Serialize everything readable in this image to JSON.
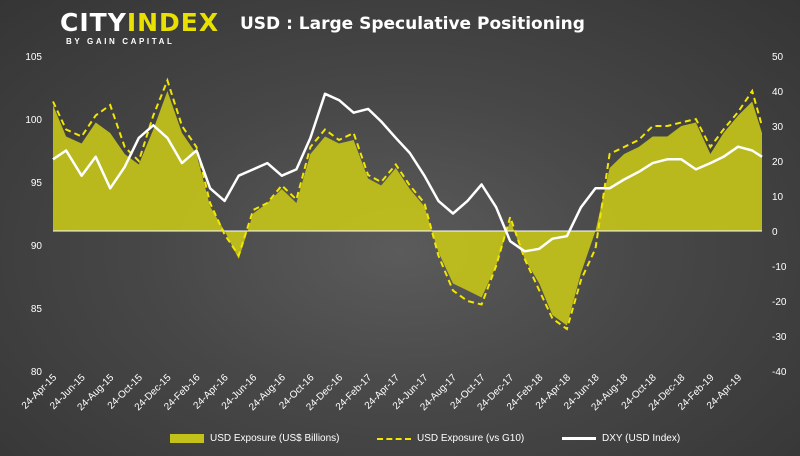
{
  "logo": {
    "main_city": "CITY",
    "main_index": "INDEX",
    "sub": "BY GAIN CAPITAL"
  },
  "colors": {
    "exposure_fill": "#c3c21a",
    "exposure_g10": "#f3e600",
    "dxy": "#ffffff",
    "baseline": "#ffffff"
  },
  "chart_data": {
    "type": "area",
    "title": "USD : Large Speculative Positioning",
    "x_tick_labels": [
      "24-Apr-15",
      "24-Jun-15",
      "24-Aug-15",
      "24-Oct-15",
      "24-Dec-15",
      "24-Feb-16",
      "24-Apr-16",
      "24-Jun-16",
      "24-Aug-16",
      "24-Oct-16",
      "24-Dec-16",
      "24-Feb-17",
      "24-Apr-17",
      "24-Jun-17",
      "24-Aug-17",
      "24-Oct-17",
      "24-Dec-17",
      "24-Feb-18",
      "24-Apr-18",
      "24-Jun-18",
      "24-Aug-18",
      "24-Oct-18",
      "24-Dec-18",
      "24-Feb-19",
      "24-Apr-19"
    ],
    "x_range": [
      "2015-04-24",
      "2019-06-14"
    ],
    "left_axis": {
      "label": "",
      "ylim": [
        80,
        105
      ],
      "ticks": [
        80,
        85,
        90,
        95,
        100,
        105
      ]
    },
    "right_axis": {
      "label": "",
      "ylim": [
        -40,
        50
      ],
      "ticks": [
        -40,
        -30,
        -20,
        -10,
        0,
        10,
        20,
        30,
        40,
        50
      ]
    },
    "legend_position": "bottom",
    "series": [
      {
        "name": "USD Exposure (US$ Billions)",
        "axis": "right",
        "style": "area",
        "x": [
          "2015-04-24",
          "2015-05-22",
          "2015-06-24",
          "2015-07-24",
          "2015-08-24",
          "2015-09-24",
          "2015-10-24",
          "2015-11-24",
          "2015-12-24",
          "2016-01-24",
          "2016-02-24",
          "2016-03-24",
          "2016-04-24",
          "2016-05-24",
          "2016-06-24",
          "2016-07-24",
          "2016-08-24",
          "2016-09-24",
          "2016-10-24",
          "2016-11-24",
          "2016-12-24",
          "2017-01-24",
          "2017-02-24",
          "2017-03-24",
          "2017-04-24",
          "2017-05-24",
          "2017-06-24",
          "2017-07-24",
          "2017-08-24",
          "2017-09-24",
          "2017-10-24",
          "2017-11-24",
          "2017-12-24",
          "2018-01-24",
          "2018-02-24",
          "2018-03-24",
          "2018-04-24",
          "2018-05-24",
          "2018-06-24",
          "2018-07-24",
          "2018-08-24",
          "2018-09-24",
          "2018-10-24",
          "2018-11-24",
          "2018-12-24",
          "2019-01-24",
          "2019-02-24",
          "2019-03-24",
          "2019-04-24",
          "2019-05-24",
          "2019-06-14"
        ],
        "values": [
          36,
          27,
          25,
          31,
          28,
          22,
          19,
          29,
          40,
          28,
          22,
          7,
          0,
          -8,
          5,
          8,
          12,
          8,
          22,
          27,
          25,
          26,
          15,
          13,
          18,
          12,
          7,
          -6,
          -15,
          -17,
          -19,
          -10,
          3,
          -8,
          -15,
          -24,
          -27,
          -12,
          0,
          18,
          22,
          24,
          27,
          27,
          30,
          31,
          22,
          28,
          33,
          37,
          28
        ]
      },
      {
        "name": "USD Exposure (vs G10)",
        "axis": "right",
        "style": "dashed",
        "x": [
          "2015-04-24",
          "2015-05-22",
          "2015-06-24",
          "2015-07-24",
          "2015-08-24",
          "2015-09-24",
          "2015-10-24",
          "2015-11-24",
          "2015-12-24",
          "2016-01-24",
          "2016-02-24",
          "2016-03-24",
          "2016-04-24",
          "2016-05-24",
          "2016-06-24",
          "2016-07-24",
          "2016-08-24",
          "2016-09-24",
          "2016-10-24",
          "2016-11-24",
          "2016-12-24",
          "2017-01-24",
          "2017-02-24",
          "2017-03-24",
          "2017-04-24",
          "2017-05-24",
          "2017-06-24",
          "2017-07-24",
          "2017-08-24",
          "2017-09-24",
          "2017-10-24",
          "2017-11-24",
          "2017-12-24",
          "2018-01-24",
          "2018-02-24",
          "2018-03-24",
          "2018-04-24",
          "2018-05-24",
          "2018-06-24",
          "2018-07-24",
          "2018-08-24",
          "2018-09-24",
          "2018-10-24",
          "2018-11-24",
          "2018-12-24",
          "2019-01-24",
          "2019-02-24",
          "2019-03-24",
          "2019-04-24",
          "2019-05-24",
          "2019-06-14"
        ],
        "values": [
          37,
          29,
          27,
          33,
          36,
          24,
          20,
          33,
          43,
          30,
          24,
          8,
          -1,
          -7,
          6,
          8,
          13,
          9,
          24,
          29,
          26,
          28,
          16,
          14,
          19,
          13,
          8,
          -7,
          -17,
          -20,
          -21,
          -10,
          4,
          -8,
          -17,
          -25,
          -28,
          -14,
          -5,
          22,
          24,
          26,
          30,
          30,
          31,
          32,
          24,
          29,
          34,
          40,
          30
        ]
      },
      {
        "name": "DXY (USD Index)",
        "axis": "left",
        "style": "line",
        "x": [
          "2015-04-24",
          "2015-05-22",
          "2015-06-24",
          "2015-07-24",
          "2015-08-24",
          "2015-09-24",
          "2015-10-24",
          "2015-11-24",
          "2015-12-24",
          "2016-01-24",
          "2016-02-24",
          "2016-03-24",
          "2016-04-24",
          "2016-05-24",
          "2016-06-24",
          "2016-07-24",
          "2016-08-24",
          "2016-09-24",
          "2016-10-24",
          "2016-11-24",
          "2016-12-24",
          "2017-01-24",
          "2017-02-24",
          "2017-03-24",
          "2017-04-24",
          "2017-05-24",
          "2017-06-24",
          "2017-07-24",
          "2017-08-24",
          "2017-09-24",
          "2017-10-24",
          "2017-11-24",
          "2017-12-24",
          "2018-01-24",
          "2018-02-24",
          "2018-03-24",
          "2018-04-24",
          "2018-05-24",
          "2018-06-24",
          "2018-07-24",
          "2018-08-24",
          "2018-09-24",
          "2018-10-24",
          "2018-11-24",
          "2018-12-24",
          "2019-01-24",
          "2019-02-24",
          "2019-03-24",
          "2019-04-24",
          "2019-05-24",
          "2019-06-14"
        ],
        "values": [
          96.8,
          97.5,
          95.5,
          97,
          94.5,
          96.2,
          98.5,
          99.5,
          98.5,
          96.5,
          97.5,
          94.5,
          93.5,
          95.5,
          96,
          96.5,
          95.5,
          96,
          98.5,
          102,
          101.5,
          100.5,
          100.8,
          99.8,
          98.5,
          97.3,
          95.5,
          93.5,
          92.5,
          93.5,
          94.8,
          93,
          90.3,
          89.5,
          89.7,
          90.5,
          90.7,
          93,
          94.5,
          94.5,
          95.2,
          95.8,
          96.5,
          96.8,
          96.8,
          96,
          96.5,
          97,
          97.8,
          97.5,
          97
        ]
      }
    ]
  },
  "legend": [
    {
      "label": "USD Exposure (US$ Billions)"
    },
    {
      "label": "USD Exposure (vs G10)"
    },
    {
      "label": "DXY (USD Index)"
    }
  ]
}
